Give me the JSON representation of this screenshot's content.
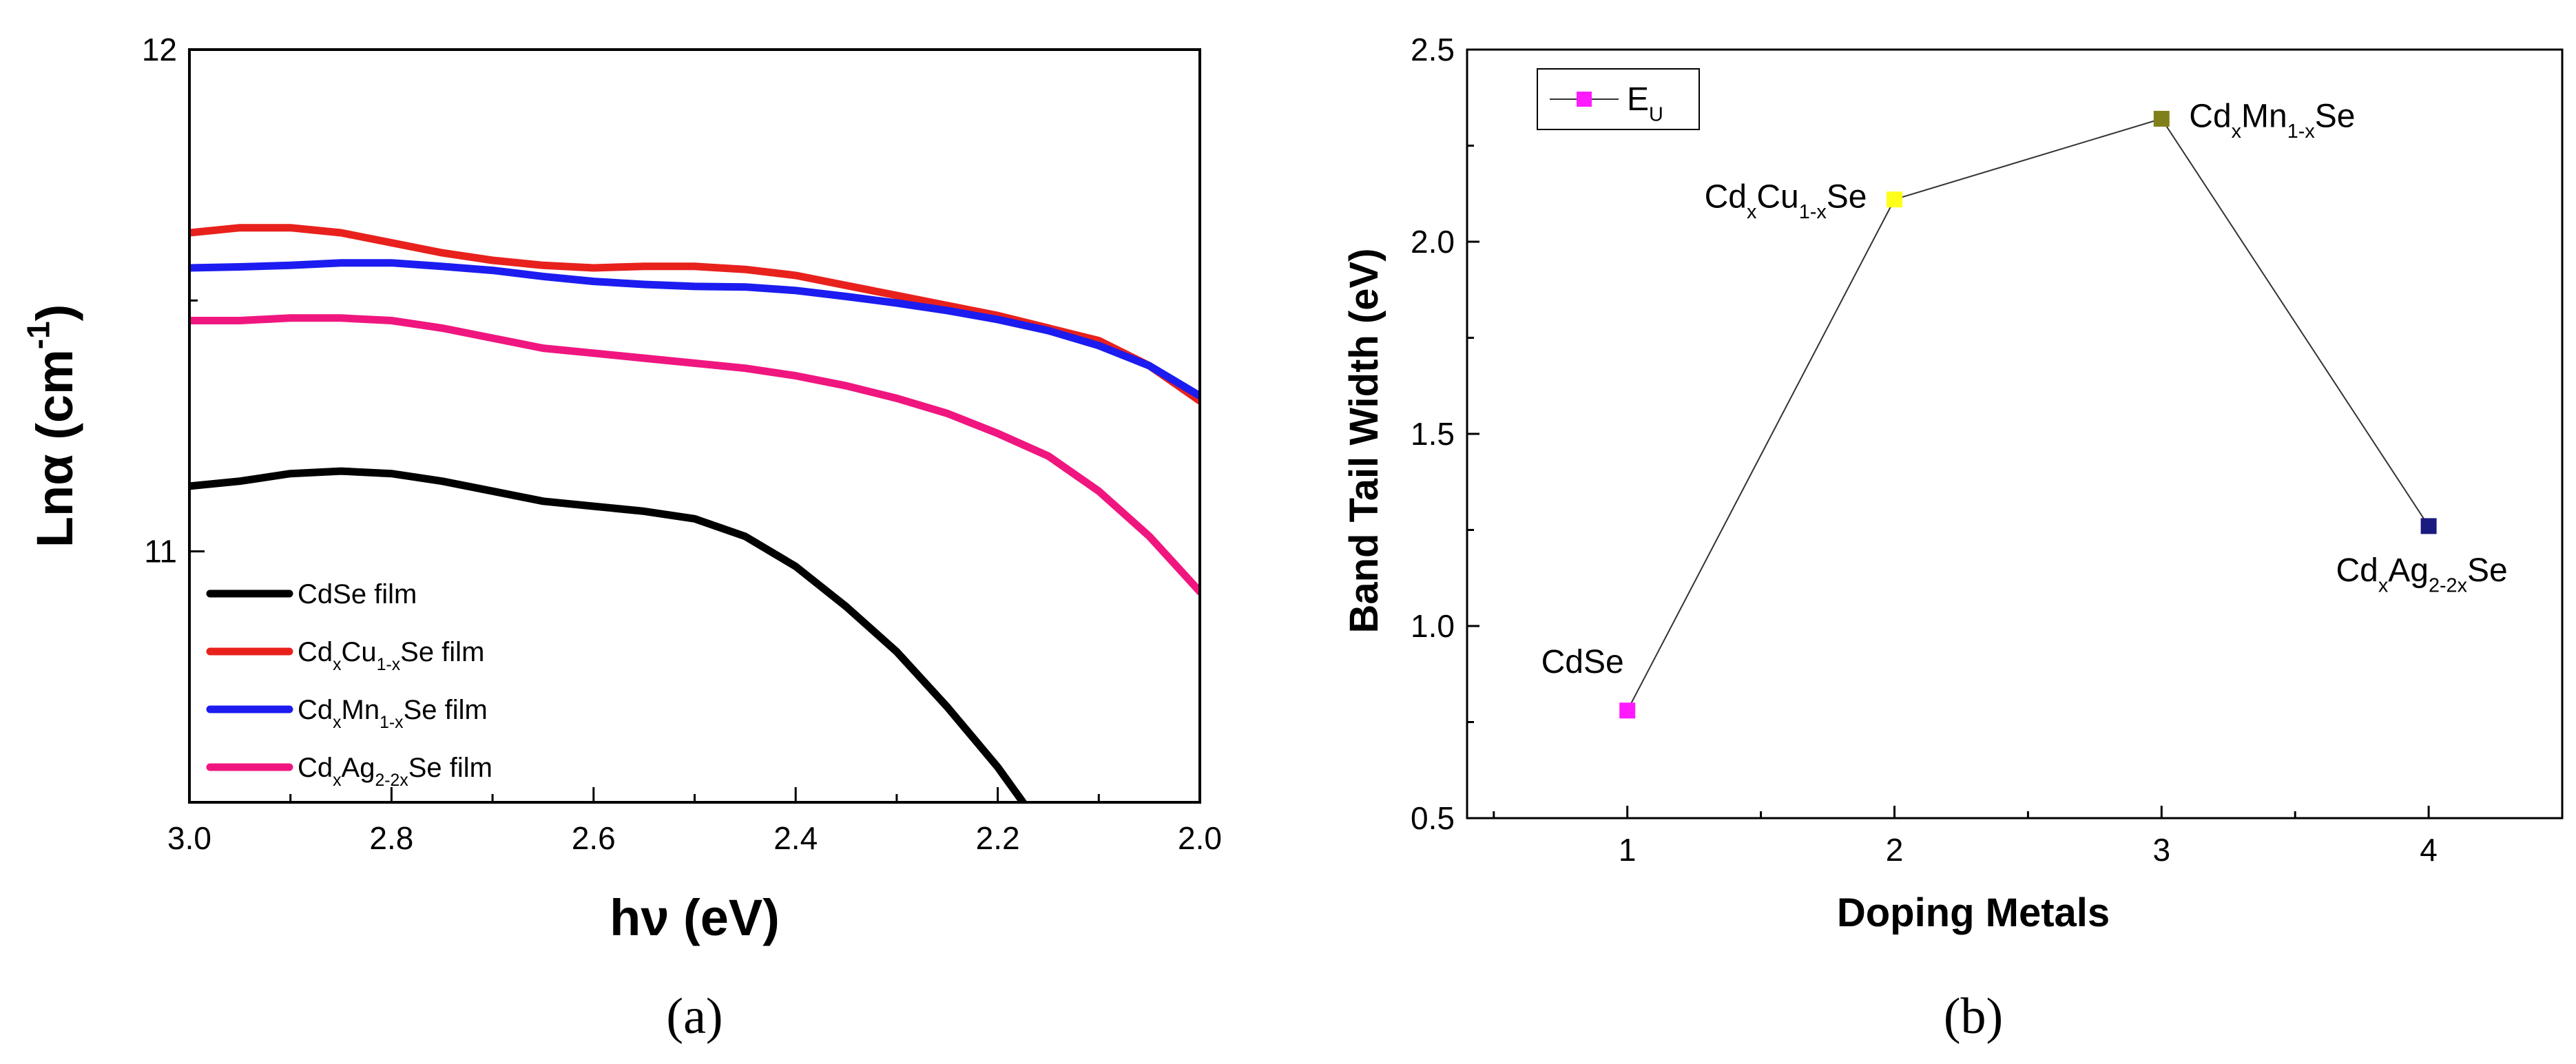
{
  "chart_data": [
    {
      "panel": "a",
      "type": "line",
      "panel_label": "(a)",
      "xlabel": "hν (eV)",
      "ylabel": "Lnα (cm-1)",
      "xlim": [
        3.0,
        2.0
      ],
      "ylim": [
        10.5,
        12
      ],
      "x_ticks": [
        "3.0",
        "2.8",
        "2.6",
        "2.4",
        "2.2",
        "2.0"
      ],
      "y_ticks": [
        "11",
        "12"
      ],
      "series": [
        {
          "name": "CdSe film",
          "legend_parts": [
            [
              "CdSe film",
              "n"
            ]
          ],
          "color": "#000000",
          "x": [
            3.0,
            2.95,
            2.9,
            2.85,
            2.8,
            2.75,
            2.7,
            2.65,
            2.6,
            2.55,
            2.5,
            2.45,
            2.4,
            2.35,
            2.3,
            2.25,
            2.2,
            2.175
          ],
          "y": [
            11.13,
            11.14,
            11.155,
            11.16,
            11.155,
            11.14,
            11.12,
            11.1,
            11.09,
            11.08,
            11.065,
            11.03,
            10.97,
            10.89,
            10.8,
            10.69,
            10.57,
            10.5
          ]
        },
        {
          "name": "CdxCu1-xSe film",
          "legend_parts": [
            [
              "Cd",
              "n"
            ],
            [
              "x",
              "sub"
            ],
            [
              "Cu",
              "n"
            ],
            [
              "1-x",
              "sub"
            ],
            [
              "Se film",
              "n"
            ]
          ],
          "color": "#e8211d",
          "x": [
            3.0,
            2.95,
            2.9,
            2.85,
            2.8,
            2.75,
            2.7,
            2.65,
            2.6,
            2.55,
            2.5,
            2.45,
            2.4,
            2.35,
            2.3,
            2.25,
            2.2,
            2.15,
            2.1,
            2.05,
            2.0
          ],
          "y": [
            11.635,
            11.645,
            11.645,
            11.635,
            11.615,
            11.595,
            11.58,
            11.57,
            11.565,
            11.568,
            11.568,
            11.562,
            11.55,
            11.53,
            11.51,
            11.49,
            11.47,
            11.445,
            11.42,
            11.37,
            11.3
          ]
        },
        {
          "name": "CdxMn1-xSe film",
          "legend_parts": [
            [
              "Cd",
              "n"
            ],
            [
              "x",
              "sub"
            ],
            [
              "Mn",
              "n"
            ],
            [
              "1-x",
              "sub"
            ],
            [
              "Se film",
              "n"
            ]
          ],
          "color": "#1c1cf0",
          "x": [
            3.0,
            2.95,
            2.9,
            2.85,
            2.8,
            2.75,
            2.7,
            2.65,
            2.6,
            2.55,
            2.5,
            2.45,
            2.4,
            2.35,
            2.3,
            2.25,
            2.2,
            2.15,
            2.1,
            2.05,
            2.0
          ],
          "y": [
            11.565,
            11.567,
            11.57,
            11.575,
            11.575,
            11.568,
            11.56,
            11.548,
            11.538,
            11.532,
            11.528,
            11.527,
            11.52,
            11.508,
            11.495,
            11.48,
            11.462,
            11.44,
            11.41,
            11.37,
            11.31
          ]
        },
        {
          "name": "CdxAg2-2xSe film",
          "legend_parts": [
            [
              "Cd",
              "n"
            ],
            [
              "x",
              "sub"
            ],
            [
              "Ag",
              "n"
            ],
            [
              "2-2x",
              "sub"
            ],
            [
              "Se film",
              "n"
            ]
          ],
          "color": "#f0167f",
          "x": [
            3.0,
            2.95,
            2.9,
            2.85,
            2.8,
            2.75,
            2.7,
            2.65,
            2.6,
            2.55,
            2.5,
            2.45,
            2.4,
            2.35,
            2.3,
            2.25,
            2.2,
            2.15,
            2.1,
            2.05,
            2.0
          ],
          "y": [
            11.46,
            11.46,
            11.465,
            11.465,
            11.46,
            11.445,
            11.425,
            11.405,
            11.395,
            11.385,
            11.375,
            11.365,
            11.35,
            11.33,
            11.305,
            11.275,
            11.235,
            11.19,
            11.12,
            11.03,
            10.92
          ]
        }
      ]
    },
    {
      "panel": "b",
      "type": "scatter",
      "panel_label": "(b)",
      "xlabel": "Doping Metals",
      "ylabel": "Band Tail Width (eV)",
      "xlim": [
        0.4,
        4.5
      ],
      "ylim": [
        0.5,
        2.5
      ],
      "x_ticks": [
        "1",
        "2",
        "3",
        "4"
      ],
      "y_ticks": [
        "0.5",
        "1.0",
        "1.5",
        "2.0",
        "2.5"
      ],
      "legend": [
        [
          "E",
          "n"
        ],
        [
          "U",
          "sub"
        ]
      ],
      "series": [
        {
          "name": "EU",
          "points": [
            {
              "x": 1,
              "y": 0.78,
              "color": "#ff1aff",
              "label_parts": [
                [
                  "CdSe",
                  "n"
                ]
              ],
              "label_pos": "above-left"
            },
            {
              "x": 2,
              "y": 2.11,
              "color": "#ffff1a",
              "label_parts": [
                [
                  "Cd",
                  "n"
                ],
                [
                  "x",
                  "sub"
                ],
                [
                  "Cu",
                  "n"
                ],
                [
                  "1-x",
                  "sub"
                ],
                [
                  "Se",
                  "n"
                ]
              ],
              "label_pos": "left"
            },
            {
              "x": 3,
              "y": 2.32,
              "color": "#80801a",
              "label_parts": [
                [
                  "Cd",
                  "n"
                ],
                [
                  "x",
                  "sub"
                ],
                [
                  "Mn",
                  "n"
                ],
                [
                  "1-x",
                  "sub"
                ],
                [
                  "Se",
                  "n"
                ]
              ],
              "label_pos": "right"
            },
            {
              "x": 4,
              "y": 1.26,
              "color": "#1a1a80",
              "label_parts": [
                [
                  "Cd",
                  "n"
                ],
                [
                  "x",
                  "sub"
                ],
                [
                  "Ag",
                  "n"
                ],
                [
                  "2-2x",
                  "sub"
                ],
                [
                  "Se",
                  "n"
                ]
              ],
              "label_pos": "below"
            }
          ]
        }
      ]
    }
  ]
}
